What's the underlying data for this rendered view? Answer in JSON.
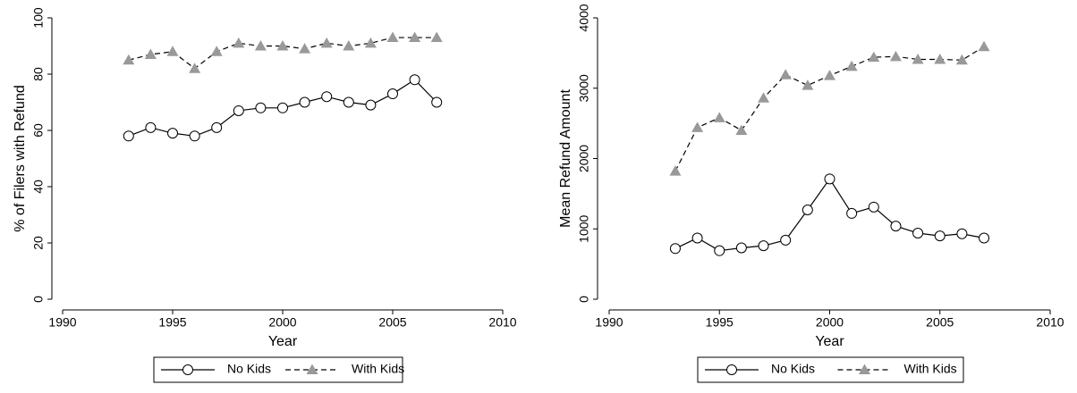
{
  "chart_data": [
    {
      "type": "line",
      "y_label": "% of Filers with Refund",
      "x_label": "Year",
      "x": [
        1993,
        1994,
        1995,
        1996,
        1997,
        1998,
        1999,
        2000,
        2001,
        2002,
        2003,
        2004,
        2005,
        2006,
        2007
      ],
      "series": [
        {
          "name": "No Kids",
          "color": "#000000",
          "dash": "solid",
          "marker": "circle",
          "marker_color": "#ffffff",
          "values": [
            58,
            61,
            59,
            58,
            61,
            67,
            68,
            68,
            70,
            72,
            70,
            69,
            73,
            78,
            70
          ]
        },
        {
          "name": "With Kids",
          "color": "#000000",
          "dash": "dashed",
          "marker": "triangle",
          "marker_color": "#999999",
          "values": [
            85,
            87,
            88,
            82,
            88,
            91,
            90,
            90,
            89,
            91,
            90,
            91,
            93,
            93,
            93
          ]
        }
      ],
      "xlim": [
        1990,
        2010
      ],
      "xticks": [
        1990,
        1995,
        2000,
        2005,
        2010
      ],
      "ylim": [
        0,
        100
      ],
      "yticks": [
        0,
        20,
        40,
        60,
        80,
        100
      ],
      "legend": "bottom"
    },
    {
      "type": "line",
      "y_label": "Mean Refund Amount",
      "x_label": "Year",
      "x": [
        1993,
        1994,
        1995,
        1996,
        1997,
        1998,
        1999,
        2000,
        2001,
        2002,
        2003,
        2004,
        2005,
        2006,
        2007
      ],
      "series": [
        {
          "name": "No Kids",
          "color": "#000000",
          "dash": "solid",
          "marker": "circle",
          "marker_color": "#ffffff",
          "values": [
            720,
            870,
            690,
            730,
            760,
            840,
            1270,
            1710,
            1220,
            1310,
            1040,
            940,
            900,
            930,
            870
          ]
        },
        {
          "name": "With Kids",
          "color": "#000000",
          "dash": "dashed",
          "marker": "triangle",
          "marker_color": "#999999",
          "values": [
            1820,
            2440,
            2580,
            2400,
            2860,
            3190,
            3040,
            3180,
            3310,
            3440,
            3450,
            3410,
            3410,
            3400,
            3590
          ]
        }
      ],
      "xlim": [
        1990,
        2010
      ],
      "xticks": [
        1990,
        1995,
        2000,
        2005,
        2010
      ],
      "ylim": [
        0,
        4000
      ],
      "yticks": [
        0,
        1000,
        2000,
        3000,
        4000
      ],
      "legend": "bottom"
    }
  ]
}
